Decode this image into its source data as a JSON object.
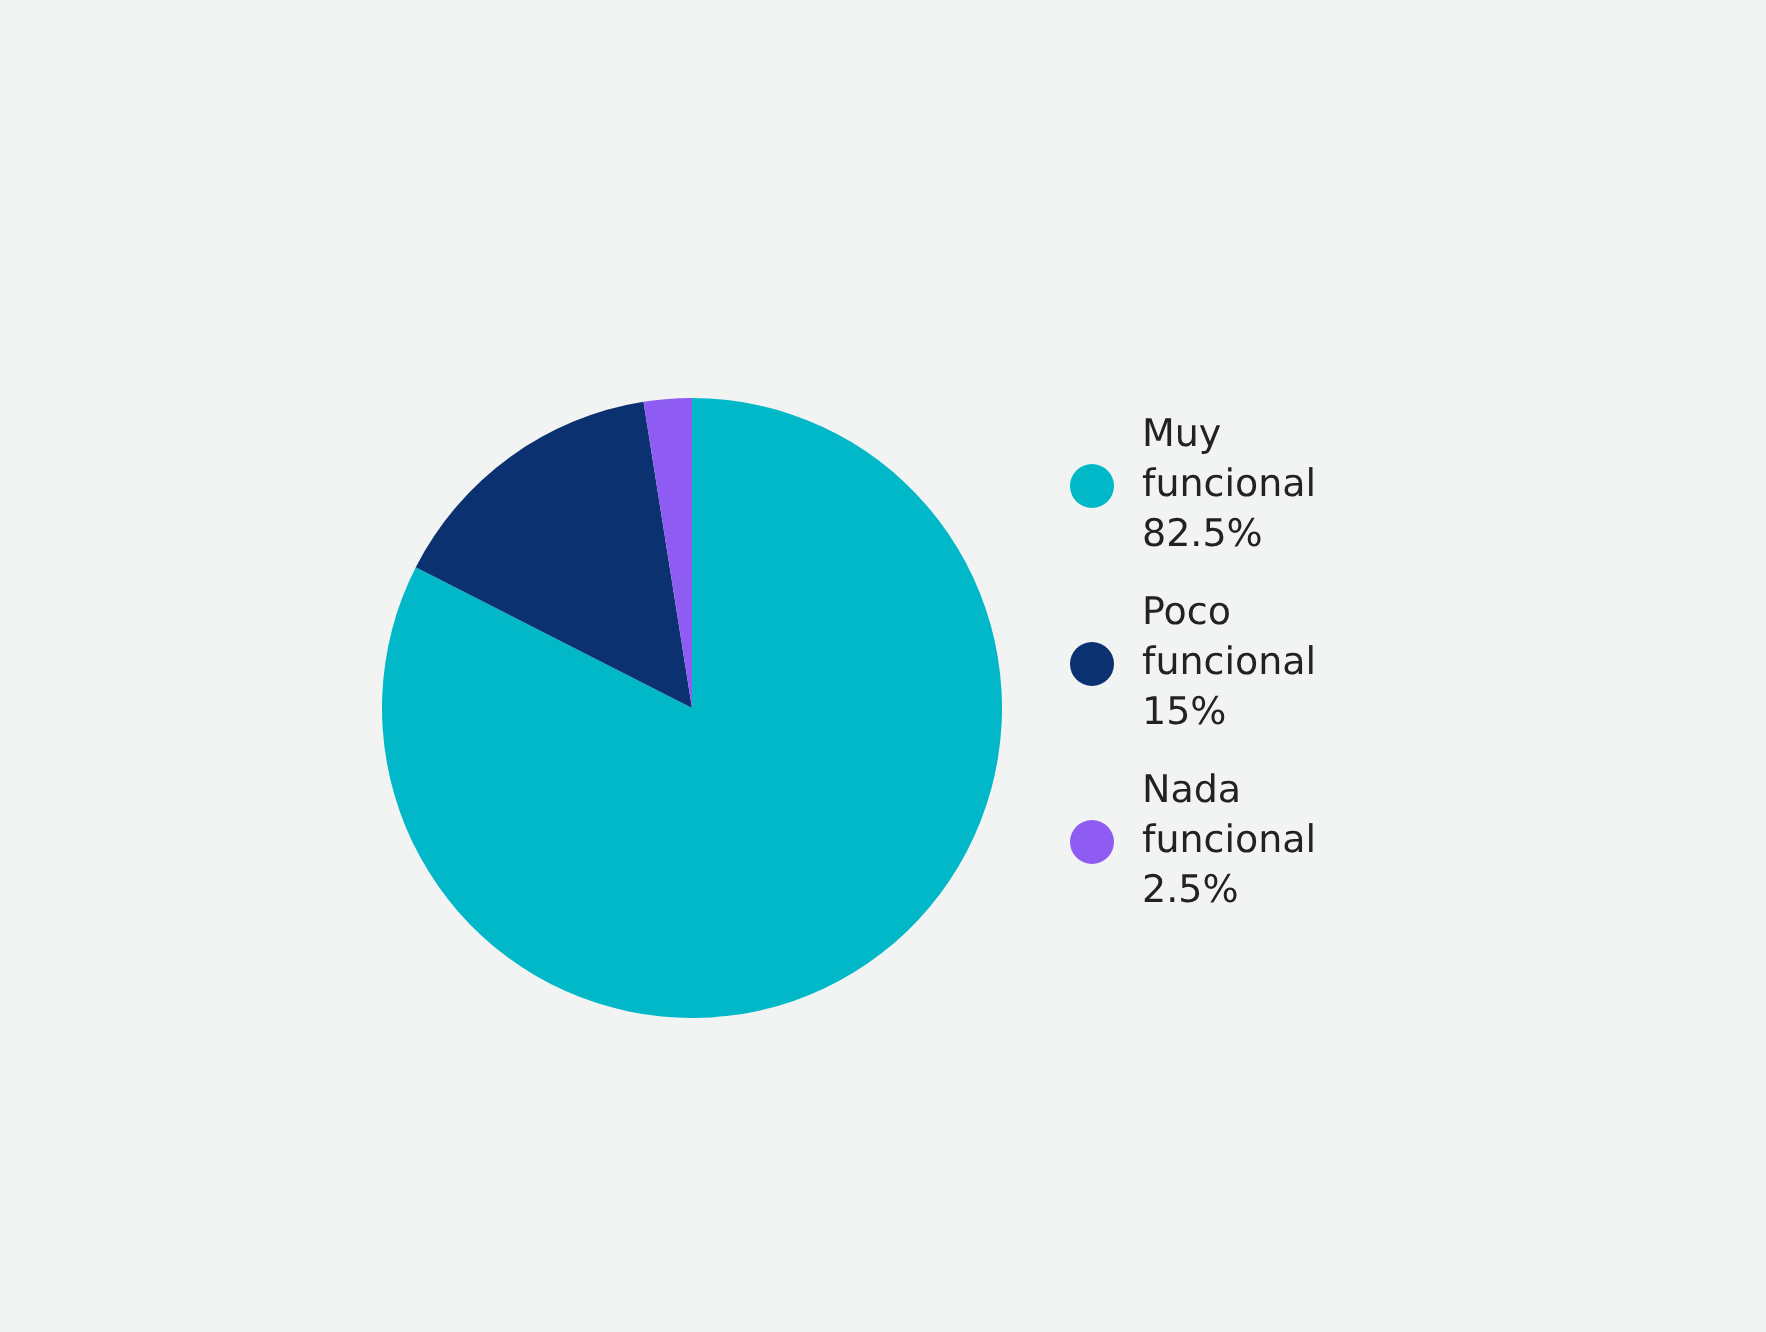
{
  "chart_data": {
    "type": "pie",
    "categories": [
      "Muy funcional",
      "Poco funcional",
      "Nada funcional"
    ],
    "values": [
      82.5,
      15,
      2.5
    ],
    "colors": [
      "#00b8c8",
      "#0c3170",
      "#8e5cf2"
    ],
    "value_labels": [
      "82.5%",
      "15%",
      "2.5%"
    ],
    "legend": "right"
  }
}
